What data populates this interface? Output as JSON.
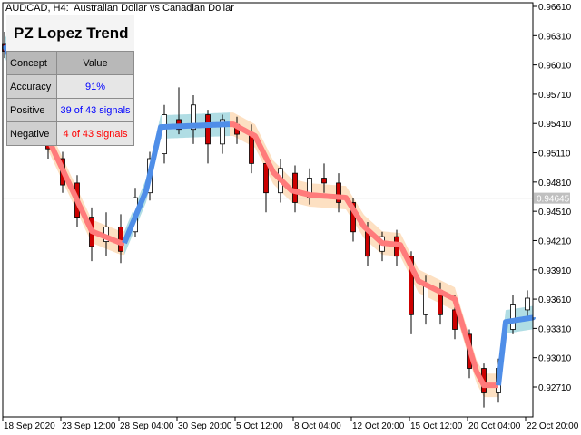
{
  "header": {
    "symbol_title": "AUDCAD, H4:  Australian Dollar vs Canadian Dollar"
  },
  "panel": {
    "title": "PZ Lopez Trend",
    "columns": [
      "Concept",
      "Value"
    ],
    "rows": [
      {
        "concept": "Accuracy",
        "value": "91%",
        "color": "#0000ff"
      },
      {
        "concept": "Positive",
        "value": "39 of 43 signals",
        "color": "#0000ff"
      },
      {
        "concept": "Negative",
        "value": "4 of 43 signals",
        "color": "#ff0000"
      }
    ]
  },
  "chart_data": {
    "type": "candlestick",
    "timeframe": "H4",
    "ylim": [
      0.9244,
      0.9664
    ],
    "y_ticks": [
      "0.96610",
      "0.96310",
      "0.96010",
      "0.95710",
      "0.95410",
      "0.95110",
      "0.94810",
      "0.94510",
      "0.94210",
      "0.93910",
      "0.93610",
      "0.93310",
      "0.93010",
      "0.92710"
    ],
    "current_price": "0.94645",
    "x_ticks": [
      {
        "bar": 0,
        "label": "18 Sep 2020"
      },
      {
        "bar": 16,
        "label": "23 Sep 12:00"
      },
      {
        "bar": 32,
        "label": "28 Sep 04:00"
      },
      {
        "bar": 48,
        "label": "30 Sep 20:00"
      },
      {
        "bar": 64,
        "label": "5 Oct 12:00"
      },
      {
        "bar": 80,
        "label": "8 Oct 04:00"
      },
      {
        "bar": 96,
        "label": "12 Oct 20:00"
      },
      {
        "bar": 112,
        "label": "15 Oct 12:00"
      },
      {
        "bar": 128,
        "label": "20 Oct 04:00"
      },
      {
        "bar": 144,
        "label": "22 Oct 20:00"
      }
    ],
    "bars_total": 146,
    "candles": [
      [
        0,
        0.9622,
        0.9635,
        0.9608,
        0.9615
      ],
      [
        4,
        0.96,
        0.9612,
        0.9585,
        0.959
      ],
      [
        8,
        0.9575,
        0.959,
        0.956,
        0.9565
      ],
      [
        12,
        0.953,
        0.9545,
        0.9505,
        0.9515
      ],
      [
        16,
        0.9505,
        0.9512,
        0.947,
        0.9478
      ],
      [
        20,
        0.948,
        0.9488,
        0.9435,
        0.9445
      ],
      [
        24,
        0.9445,
        0.9455,
        0.94,
        0.9415
      ],
      [
        28,
        0.942,
        0.945,
        0.9405,
        0.9435
      ],
      [
        32,
        0.9435,
        0.9448,
        0.9398,
        0.941
      ],
      [
        36,
        0.943,
        0.9475,
        0.9425,
        0.9465
      ],
      [
        40,
        0.947,
        0.9512,
        0.9462,
        0.9505
      ],
      [
        44,
        0.951,
        0.956,
        0.95,
        0.955
      ],
      [
        48,
        0.9545,
        0.9578,
        0.953,
        0.9535
      ],
      [
        52,
        0.9535,
        0.957,
        0.952,
        0.956
      ],
      [
        56,
        0.955,
        0.9555,
        0.95,
        0.952
      ],
      [
        60,
        0.952,
        0.955,
        0.951,
        0.9545
      ],
      [
        64,
        0.954,
        0.9548,
        0.952,
        0.953
      ],
      [
        68,
        0.953,
        0.954,
        0.949,
        0.95
      ],
      [
        72,
        0.95,
        0.951,
        0.945,
        0.947
      ],
      [
        76,
        0.947,
        0.9505,
        0.946,
        0.9495
      ],
      [
        80,
        0.949,
        0.9498,
        0.945,
        0.946
      ],
      [
        84,
        0.9465,
        0.9495,
        0.9458,
        0.9485
      ],
      [
        88,
        0.9485,
        0.95,
        0.947,
        0.948
      ],
      [
        92,
        0.948,
        0.949,
        0.945,
        0.946
      ],
      [
        96,
        0.946,
        0.9465,
        0.942,
        0.943
      ],
      [
        100,
        0.943,
        0.944,
        0.9395,
        0.9405
      ],
      [
        104,
        0.941,
        0.943,
        0.94,
        0.9425
      ],
      [
        108,
        0.9425,
        0.9432,
        0.9395,
        0.9405
      ],
      [
        112,
        0.9405,
        0.941,
        0.9325,
        0.9345
      ],
      [
        116,
        0.9345,
        0.9385,
        0.9335,
        0.9375
      ],
      [
        120,
        0.937,
        0.9378,
        0.9335,
        0.9345
      ],
      [
        124,
        0.935,
        0.9365,
        0.932,
        0.933
      ],
      [
        128,
        0.9325,
        0.933,
        0.928,
        0.929
      ],
      [
        132,
        0.929,
        0.9295,
        0.925,
        0.9265
      ],
      [
        136,
        0.9265,
        0.93,
        0.9255,
        0.929
      ],
      [
        140,
        0.933,
        0.9365,
        0.9325,
        0.9355
      ],
      [
        144,
        0.935,
        0.937,
        0.934,
        0.9362
      ]
    ],
    "candle_format": [
      "bar",
      "open",
      "high",
      "low",
      "close"
    ],
    "trend_line": [
      [
        0,
        0.96211
      ],
      [
        14,
        0.95096
      ],
      [
        24,
        0.94306
      ],
      [
        32,
        0.94185
      ],
      [
        33,
        0.94185
      ],
      [
        39,
        0.94724
      ],
      [
        43,
        0.95374
      ],
      [
        62,
        0.95402
      ],
      [
        63,
        0.95402
      ],
      [
        69,
        0.95282
      ],
      [
        74,
        0.9491
      ],
      [
        79,
        0.94724
      ],
      [
        84,
        0.94678
      ],
      [
        94,
        0.9465
      ],
      [
        99,
        0.94353
      ],
      [
        104,
        0.94185
      ],
      [
        109,
        0.94167
      ],
      [
        114,
        0.93795
      ],
      [
        124,
        0.9361
      ],
      [
        127,
        0.93238
      ],
      [
        130,
        0.92866
      ],
      [
        132,
        0.92727
      ],
      [
        136,
        0.92727
      ],
      [
        138,
        0.93377
      ],
      [
        146,
        0.93424
      ]
    ],
    "trend_segments": [
      {
        "from": 0,
        "to": 12,
        "direction": "up"
      },
      {
        "from": 12,
        "to": 33,
        "direction": "down"
      },
      {
        "from": 33,
        "to": 62,
        "direction": "up"
      },
      {
        "from": 62,
        "to": 136,
        "direction": "down"
      },
      {
        "from": 136,
        "to": 146,
        "direction": "up"
      }
    ],
    "band_halfwidth": 0.0012,
    "colors": {
      "up_line": "#4f8ee8",
      "down_line": "#ff7b7b",
      "up_band": "#b0dde4",
      "down_band": "#fde0c2",
      "bull_body": "#ffffff",
      "bear_body": "#cc0000",
      "wick": "#000000",
      "price_line": "#c0c0c0",
      "price_label_bg": "#c0c0c0"
    }
  }
}
